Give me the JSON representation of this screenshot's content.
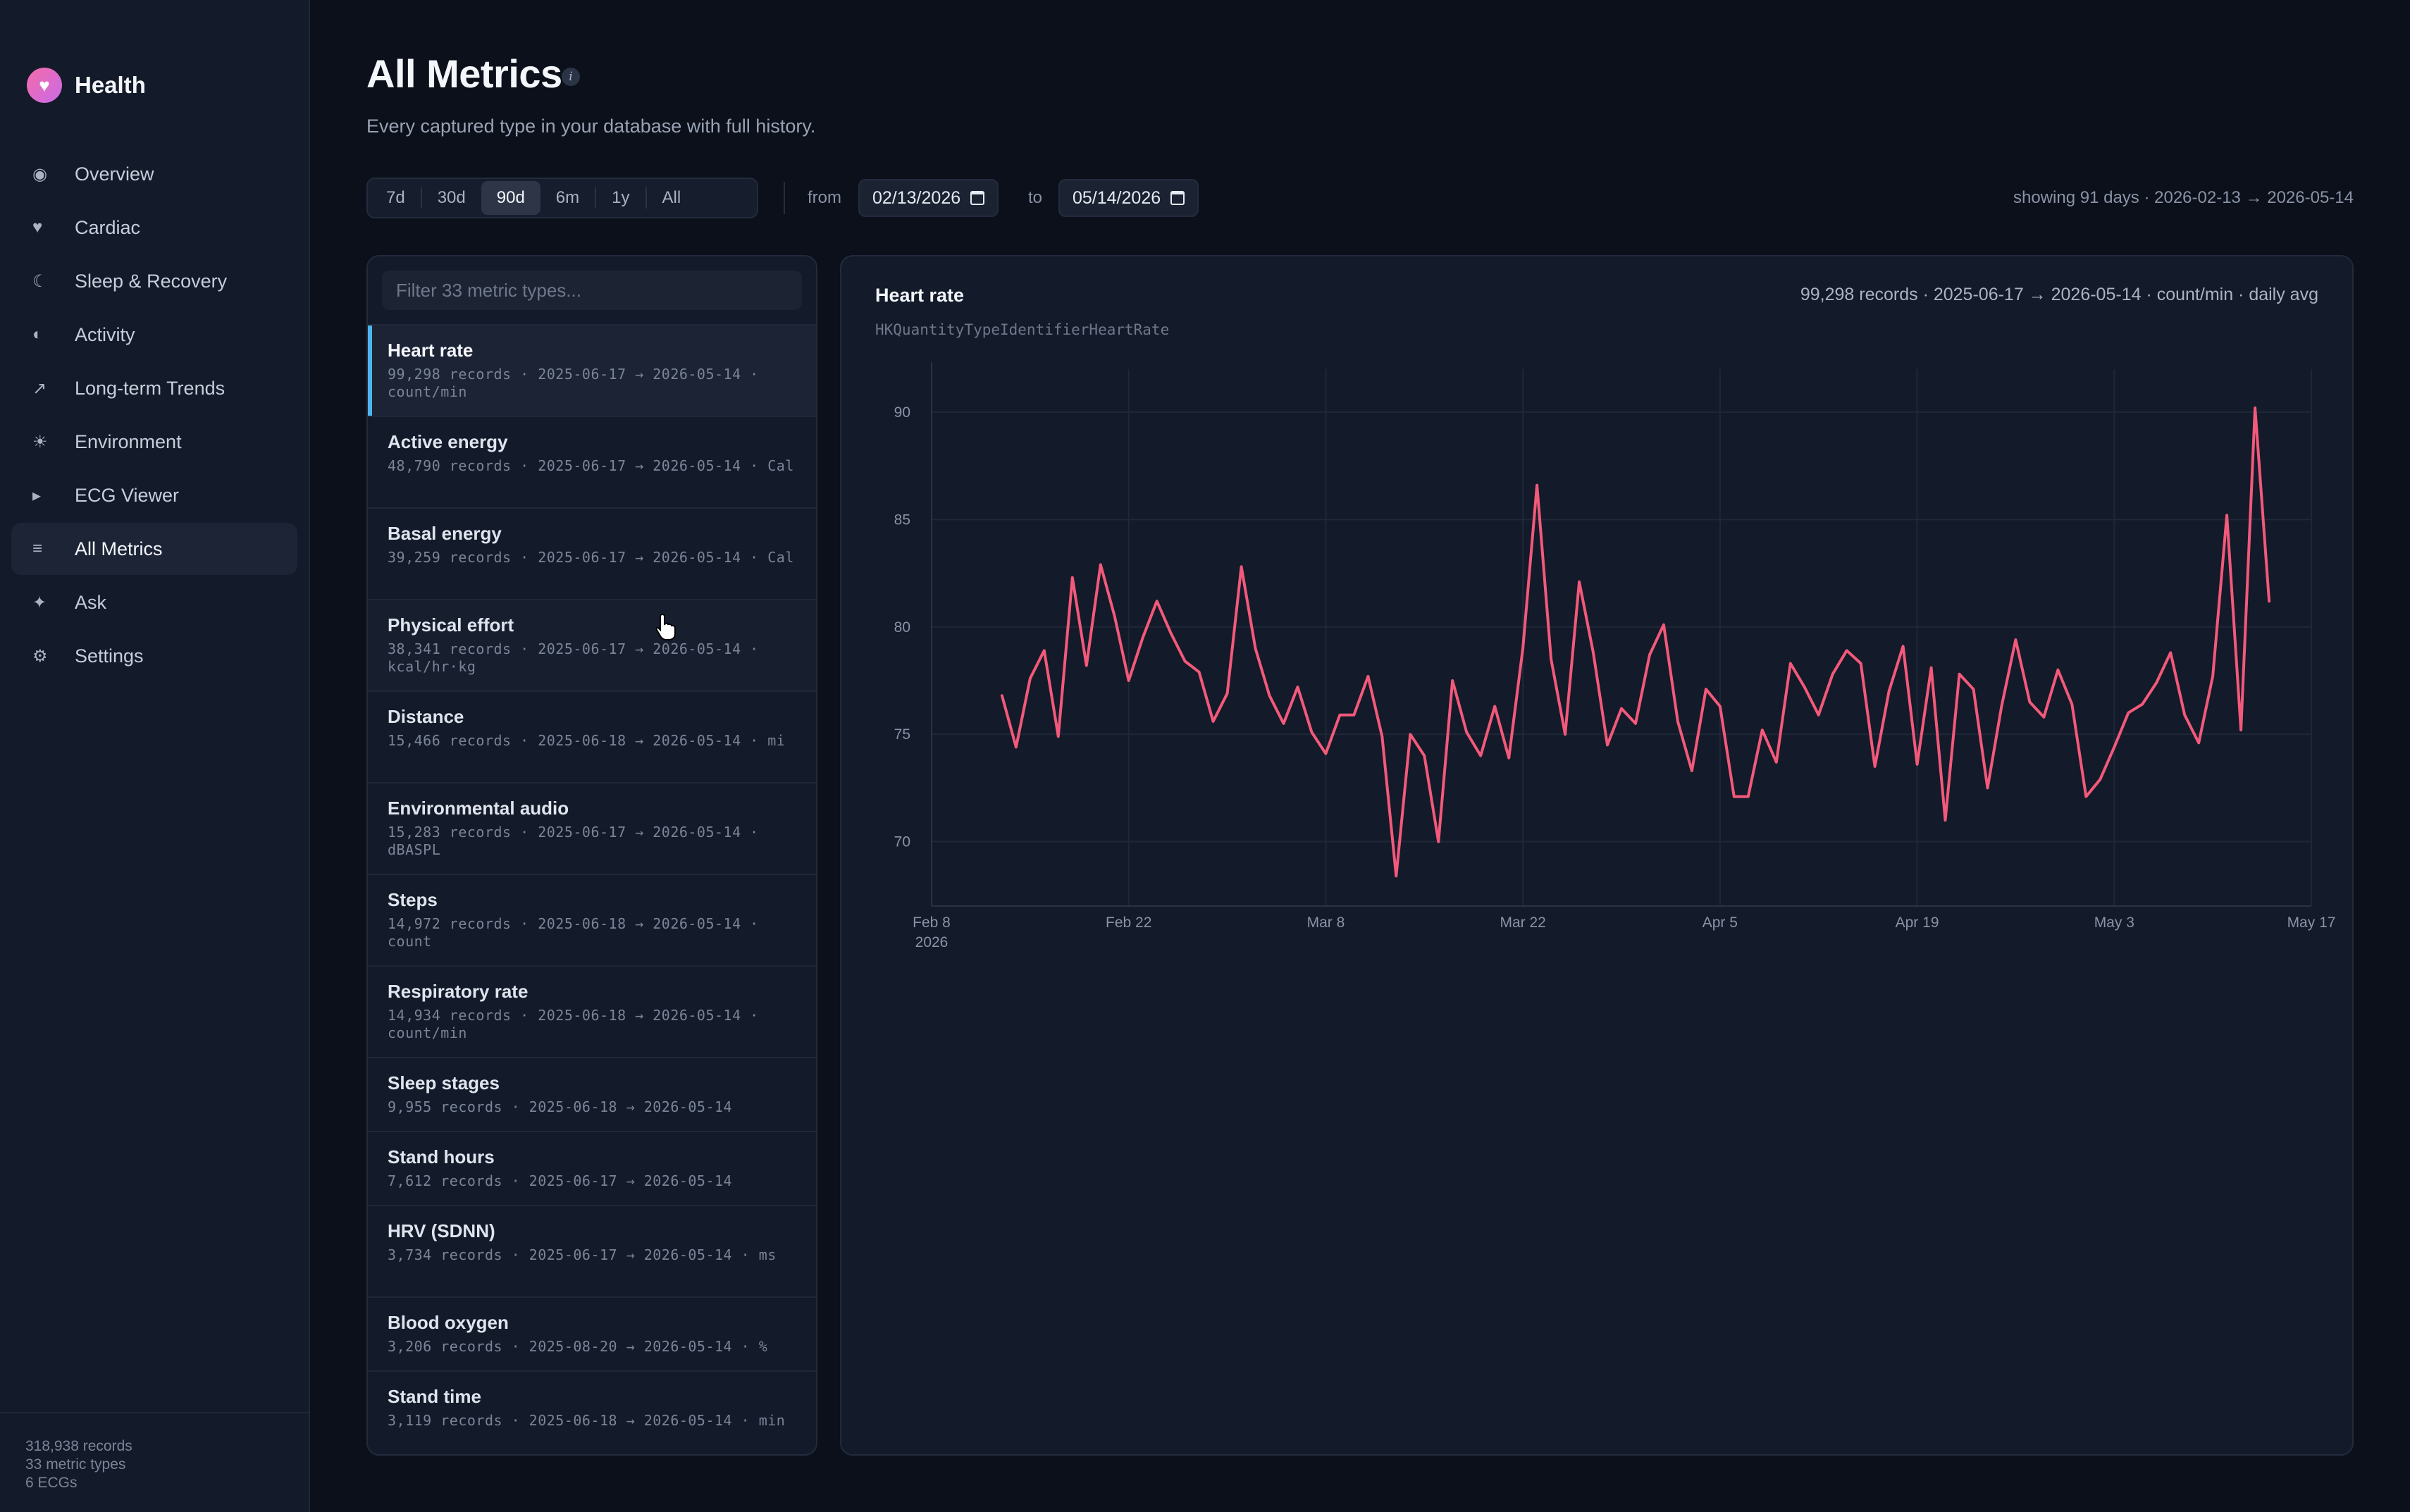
{
  "app": {
    "name": "Health",
    "logo_icon": "heart-icon"
  },
  "sidebar": {
    "items": [
      {
        "label": "Overview",
        "icon": "overview-icon"
      },
      {
        "label": "Cardiac",
        "icon": "heart-icon"
      },
      {
        "label": "Sleep & Recovery",
        "icon": "moon-icon"
      },
      {
        "label": "Activity",
        "icon": "half-circle-icon"
      },
      {
        "label": "Long-term Trends",
        "icon": "arrow-up-right-icon"
      },
      {
        "label": "Environment",
        "icon": "sun-icon"
      },
      {
        "label": "ECG Viewer",
        "icon": "play-icon"
      },
      {
        "label": "All Metrics",
        "icon": "list-icon",
        "active": true
      },
      {
        "label": "Ask",
        "icon": "sparkle-icon"
      },
      {
        "label": "Settings",
        "icon": "gear-icon"
      }
    ],
    "footer": {
      "records": "318,938 records",
      "types": "33 metric types",
      "ecgs": "6 ECGs"
    }
  },
  "header": {
    "title": "All Metrics",
    "subtitle": "Every captured type in your database with full history."
  },
  "range": {
    "options": [
      "7d",
      "30d",
      "90d",
      "6m",
      "1y",
      "All"
    ],
    "selected": "90d",
    "from_label": "from",
    "to_label": "to",
    "from_value": "02/13/2026",
    "to_value": "05/14/2026",
    "showing": "showing 91 days · 2026-02-13 → 2026-05-14"
  },
  "metric_list": {
    "filter_placeholder": "Filter 33 metric types...",
    "items": [
      {
        "name": "Heart rate",
        "meta": "99,298 records · 2025-06-17 → 2026-05-14 · count/min",
        "selected": true
      },
      {
        "name": "Active energy",
        "meta": "48,790 records · 2025-06-17 → 2026-05-14 · Cal"
      },
      {
        "name": "Basal energy",
        "meta": "39,259 records · 2025-06-17 → 2026-05-14 · Cal"
      },
      {
        "name": "Physical effort",
        "meta": "38,341 records · 2025-06-17 → 2026-05-14 · kcal/hr·kg",
        "hover": true
      },
      {
        "name": "Distance",
        "meta": "15,466 records · 2025-06-18 → 2026-05-14 · mi"
      },
      {
        "name": "Environmental audio",
        "meta": "15,283 records · 2025-06-17 → 2026-05-14 · dBASPL"
      },
      {
        "name": "Steps",
        "meta": "14,972 records · 2025-06-18 → 2026-05-14 · count"
      },
      {
        "name": "Respiratory rate",
        "meta": "14,934 records · 2025-06-18 → 2026-05-14 · count/min"
      },
      {
        "name": "Sleep stages",
        "meta": "9,955 records · 2025-06-18 → 2026-05-14",
        "short": true
      },
      {
        "name": "Stand hours",
        "meta": "7,612 records · 2025-06-17 → 2026-05-14",
        "short": true
      },
      {
        "name": "HRV (SDNN)",
        "meta": "3,734 records · 2025-06-17 → 2026-05-14 · ms"
      },
      {
        "name": "Blood oxygen",
        "meta": "3,206 records · 2025-08-20 → 2026-05-14 · %",
        "short": true
      },
      {
        "name": "Stand time",
        "meta": "3,119 records · 2025-06-18 → 2026-05-14 · min"
      }
    ]
  },
  "chart_panel": {
    "title": "Heart rate",
    "meta": "99,298 records · 2025-06-17 → 2026-05-14 · count/min · daily avg",
    "identifier": "HKQuantityTypeIdentifierHeartRate"
  },
  "chart_data": {
    "type": "line",
    "title": "Heart rate",
    "xlabel": "",
    "ylabel": "",
    "color": "#f2597a",
    "x_start": "2026-02-13",
    "x_end": "2026-05-14",
    "xlim": [
      "2026-02-08",
      "2026-05-17"
    ],
    "ylim": [
      67,
      92
    ],
    "y_ticks": [
      70,
      75,
      80,
      85,
      90
    ],
    "x_ticks": [
      {
        "date": "2026-02-08",
        "label": "Feb 8",
        "sublabel": "2026"
      },
      {
        "date": "2026-02-22",
        "label": "Feb 22"
      },
      {
        "date": "2026-03-08",
        "label": "Mar 8"
      },
      {
        "date": "2026-03-22",
        "label": "Mar 22"
      },
      {
        "date": "2026-04-05",
        "label": "Apr 5"
      },
      {
        "date": "2026-04-19",
        "label": "Apr 19"
      },
      {
        "date": "2026-05-03",
        "label": "May 3"
      },
      {
        "date": "2026-05-17",
        "label": "May 17"
      }
    ],
    "grid": true,
    "series": [
      {
        "values": [
          76.8,
          74.4,
          77.6,
          78.9,
          74.9,
          82.3,
          78.2,
          82.9,
          80.5,
          77.5,
          79.5,
          81.2,
          79.7,
          78.4,
          77.9,
          75.6,
          76.9,
          82.8,
          79,
          76.8,
          75.5,
          77.2,
          75.1,
          74.1,
          75.9,
          75.9,
          77.7,
          74.9,
          68.4,
          75,
          74,
          70,
          77.5,
          75.1,
          74,
          76.3,
          73.9,
          79,
          86.6,
          78.5,
          75,
          82.1,
          78.8,
          74.5,
          76.2,
          75.5,
          78.7,
          80.1,
          75.6,
          73.3,
          77.1,
          76.3,
          72.1,
          72.1,
          75.2,
          73.7,
          78.3,
          77.2,
          75.9,
          77.8,
          78.9,
          78.3,
          73.5,
          77,
          79.1,
          73.6,
          78.1,
          71,
          77.8,
          77.1,
          72.5,
          76.3,
          79.4,
          76.5,
          75.8,
          78,
          76.4,
          72.1,
          72.9,
          74.4,
          76,
          76.4,
          77.4,
          78.8,
          75.9,
          74.6,
          77.7,
          85.2,
          75.2,
          90.2,
          81.2
        ]
      }
    ]
  }
}
